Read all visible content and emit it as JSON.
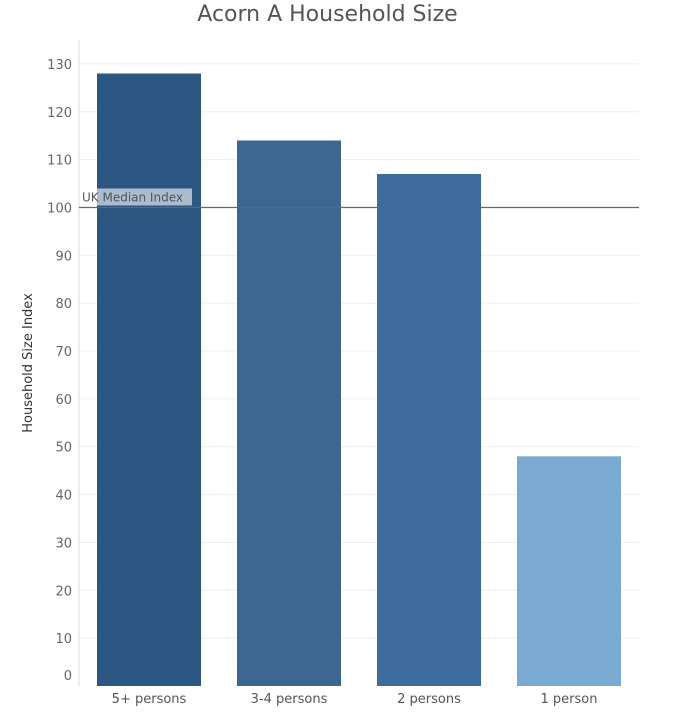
{
  "chart_data": {
    "type": "bar",
    "title": "Acorn A Household Size",
    "xlabel": "",
    "ylabel": "Household Size Index",
    "ylim": [
      0,
      135
    ],
    "yticks": [
      0,
      10,
      20,
      30,
      40,
      50,
      60,
      70,
      80,
      90,
      100,
      110,
      120,
      130
    ],
    "categories": [
      "5+ persons",
      "3-4 persons",
      "2 persons",
      "1 person"
    ],
    "values": [
      128,
      114,
      107,
      48
    ],
    "colors": [
      "#2b5782",
      "#3d6691",
      "#3f6c9e",
      "#7aaad2"
    ],
    "reference_line": {
      "label": "UK Median Index",
      "value": 100,
      "color": "#666666"
    },
    "grid": true,
    "gridline_color": "#eeeeee"
  }
}
